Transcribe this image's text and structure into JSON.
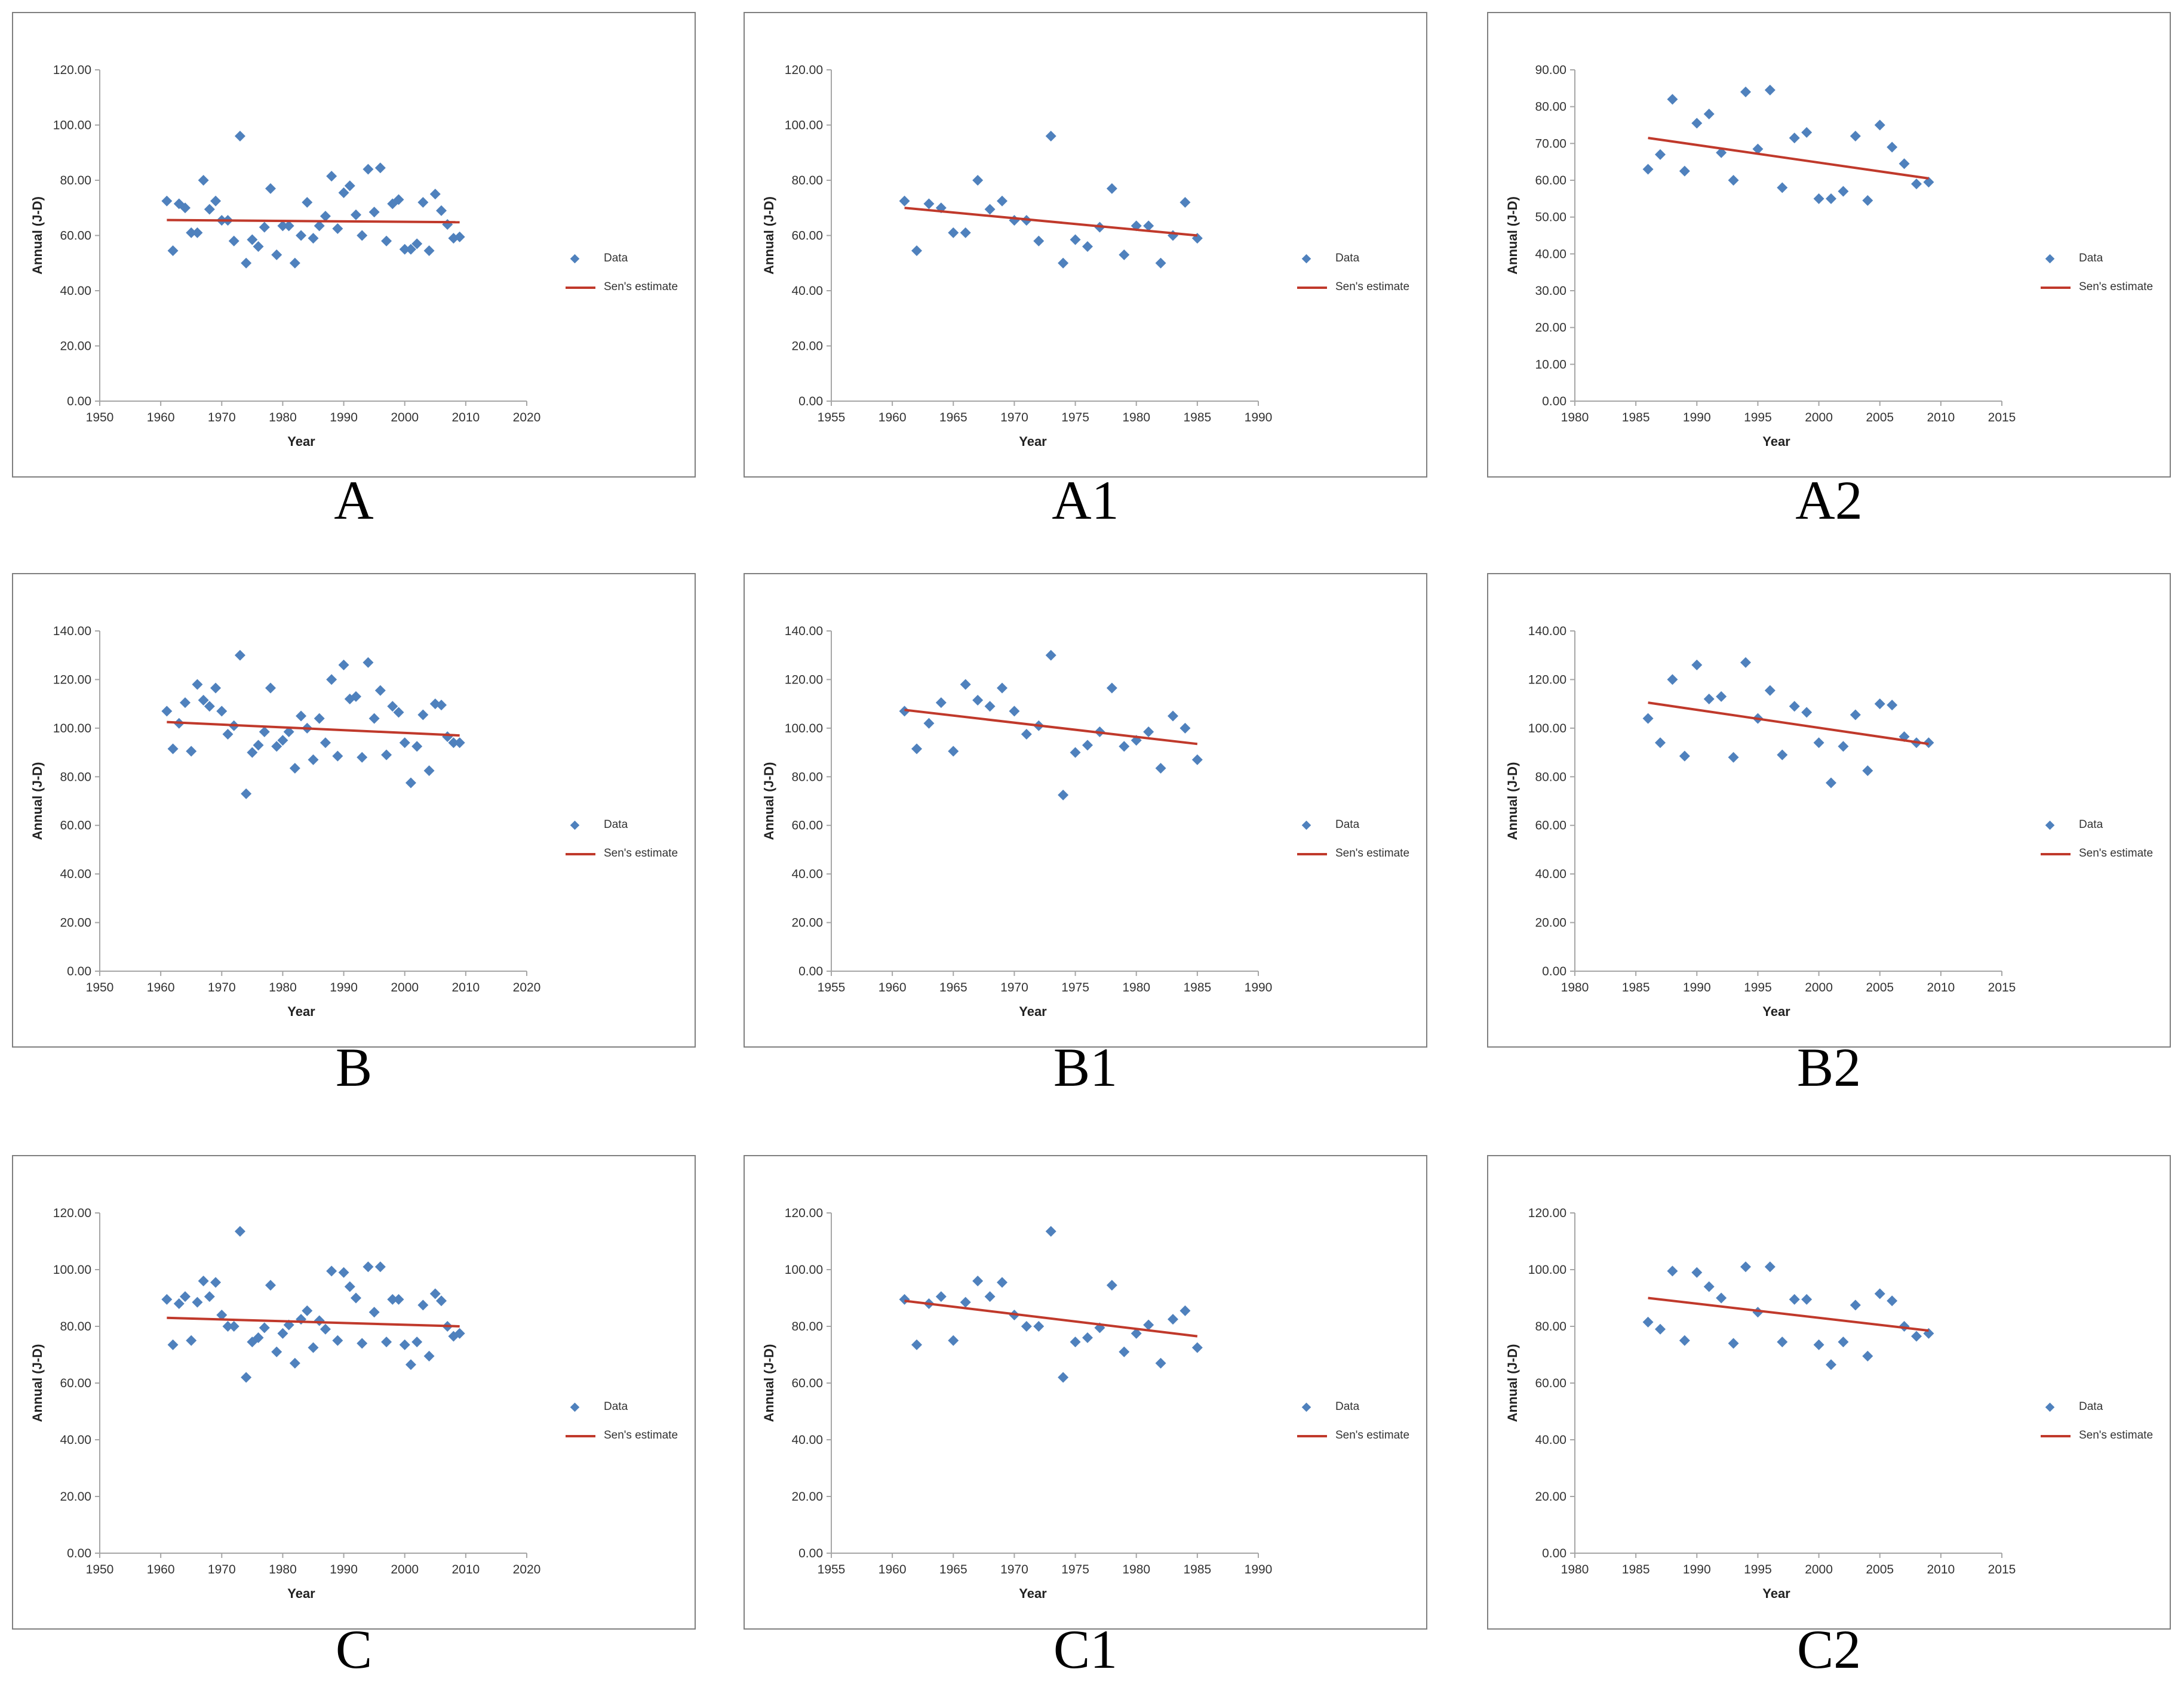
{
  "legend": {
    "data_label": "Data",
    "trend_label": "Sen's estimate"
  },
  "colors": {
    "marker": "#4f81bd",
    "trend": "#c0392b",
    "axis": "#a6a6a6"
  },
  "chart_data": [
    {
      "id": "A",
      "caption": "A",
      "type": "scatter",
      "xlabel": "Year",
      "ylabel": "Annual (J-D)",
      "xlim": [
        1950,
        2020
      ],
      "ylim": [
        0,
        120
      ],
      "xticks": [
        "1950",
        "1960",
        "1970",
        "1980",
        "1990",
        "2000",
        "2010",
        "2020"
      ],
      "yticks": [
        "0.00",
        "20.00",
        "40.00",
        "60.00",
        "80.00",
        "100.00",
        "120.00"
      ],
      "series": [
        {
          "name": "Data",
          "x": [
            1961,
            1962,
            1963,
            1964,
            1965,
            1966,
            1967,
            1968,
            1969,
            1970,
            1971,
            1972,
            1973,
            1974,
            1975,
            1976,
            1977,
            1978,
            1979,
            1980,
            1981,
            1982,
            1983,
            1984,
            1985,
            1986,
            1987,
            1988,
            1989,
            1990,
            1991,
            1992,
            1993,
            1994,
            1995,
            1996,
            1997,
            1998,
            1999,
            2000,
            2001,
            2002,
            2003,
            2004,
            2005,
            2006,
            2007,
            2008,
            2009
          ],
          "y": [
            72.5,
            54.5,
            71.5,
            70,
            61,
            61,
            80,
            69.5,
            72.5,
            65.5,
            65.5,
            58,
            96,
            50,
            58.5,
            56,
            63,
            77,
            53,
            63.5,
            63.5,
            50,
            60,
            72,
            59,
            63.5,
            67,
            81.5,
            62.5,
            75.5,
            78,
            67.5,
            60,
            84,
            68.5,
            84.5,
            58,
            71.5,
            73,
            55,
            55,
            57,
            72,
            54.5,
            75,
            69,
            64,
            59,
            59.5
          ]
        }
      ],
      "trend": {
        "name": "Sen's estimate",
        "x": [
          1961,
          2009
        ],
        "y": [
          65.6,
          64.8
        ]
      }
    },
    {
      "id": "A1",
      "caption": "A1",
      "type": "scatter",
      "xlabel": "Year",
      "ylabel": "Annual (J-D)",
      "xlim": [
        1955,
        1990
      ],
      "ylim": [
        0,
        120
      ],
      "xticks": [
        "1955",
        "1960",
        "1965",
        "1970",
        "1975",
        "1980",
        "1985",
        "1990"
      ],
      "yticks": [
        "0.00",
        "20.00",
        "40.00",
        "60.00",
        "80.00",
        "100.00",
        "120.00"
      ],
      "series": [
        {
          "name": "Data",
          "x": [
            1961,
            1962,
            1963,
            1964,
            1965,
            1966,
            1967,
            1968,
            1969,
            1970,
            1971,
            1972,
            1973,
            1974,
            1975,
            1976,
            1977,
            1978,
            1979,
            1980,
            1981,
            1982,
            1983,
            1984,
            1985
          ],
          "y": [
            72.5,
            54.5,
            71.5,
            70,
            61,
            61,
            80,
            69.5,
            72.5,
            65.5,
            65.5,
            58,
            96,
            50,
            58.5,
            56,
            63,
            77,
            53,
            63.5,
            63.5,
            50,
            60,
            72,
            59
          ]
        }
      ],
      "trend": {
        "name": "Sen's estimate",
        "x": [
          1961,
          1985
        ],
        "y": [
          70,
          60
        ]
      }
    },
    {
      "id": "A2",
      "caption": "A2",
      "type": "scatter",
      "xlabel": "Year",
      "ylabel": "Annual (J-D)",
      "xlim": [
        1980,
        2015
      ],
      "ylim": [
        0,
        90
      ],
      "xticks": [
        "1980",
        "1985",
        "1990",
        "1995",
        "2000",
        "2005",
        "2010",
        "2015"
      ],
      "yticks": [
        "0.00",
        "10.00",
        "20.00",
        "30.00",
        "40.00",
        "50.00",
        "60.00",
        "70.00",
        "80.00",
        "90.00"
      ],
      "series": [
        {
          "name": "Data",
          "x": [
            1986,
            1987,
            1988,
            1989,
            1990,
            1991,
            1992,
            1993,
            1994,
            1995,
            1996,
            1997,
            1998,
            1999,
            2000,
            2001,
            2002,
            2003,
            2004,
            2005,
            2006,
            2007,
            2008,
            2009
          ],
          "y": [
            63,
            67,
            82,
            62.5,
            75.5,
            78,
            67.5,
            60,
            84,
            68.5,
            84.5,
            58,
            71.5,
            73,
            55,
            55,
            57,
            72,
            54.5,
            75,
            69,
            64.5,
            59,
            59.5
          ]
        }
      ],
      "trend": {
        "name": "Sen's estimate",
        "x": [
          1986,
          2009
        ],
        "y": [
          71.5,
          60.5
        ]
      }
    },
    {
      "id": "B",
      "caption": "B",
      "type": "scatter",
      "xlabel": "Year",
      "ylabel": "Annual (J-D)",
      "xlim": [
        1950,
        2020
      ],
      "ylim": [
        0,
        140
      ],
      "xticks": [
        "1950",
        "1960",
        "1970",
        "1980",
        "1990",
        "2000",
        "2010",
        "2020"
      ],
      "yticks": [
        "0.00",
        "20.00",
        "40.00",
        "60.00",
        "80.00",
        "100.00",
        "120.00",
        "140.00"
      ],
      "series": [
        {
          "name": "Data",
          "x": [
            1961,
            1962,
            1963,
            1964,
            1965,
            1966,
            1967,
            1968,
            1969,
            1970,
            1971,
            1972,
            1973,
            1974,
            1975,
            1976,
            1977,
            1978,
            1979,
            1980,
            1981,
            1982,
            1983,
            1984,
            1985,
            1986,
            1987,
            1988,
            1989,
            1990,
            1991,
            1992,
            1993,
            1994,
            1995,
            1996,
            1997,
            1998,
            1999,
            2000,
            2001,
            2002,
            2003,
            2004,
            2005,
            2006,
            2007,
            2008,
            2009
          ],
          "y": [
            107,
            91.5,
            102,
            110.5,
            90.5,
            118,
            111.5,
            109,
            116.5,
            107,
            97.5,
            101,
            130,
            73,
            90,
            93,
            98.5,
            116.5,
            92.5,
            95,
            98.5,
            83.5,
            105,
            100,
            87,
            104,
            94,
            120,
            88.5,
            126,
            112,
            113,
            88,
            127,
            104,
            115.5,
            89,
            109,
            106.5,
            94,
            77.5,
            92.5,
            105.5,
            82.5,
            110,
            109.5,
            96.5,
            94,
            94
          ]
        }
      ],
      "trend": {
        "name": "Sen's estimate",
        "x": [
          1961,
          2009
        ],
        "y": [
          102.5,
          97
        ]
      }
    },
    {
      "id": "B1",
      "caption": "B1",
      "type": "scatter",
      "xlabel": "Year",
      "ylabel": "Annual (J-D)",
      "xlim": [
        1955,
        1990
      ],
      "ylim": [
        0,
        140
      ],
      "xticks": [
        "1955",
        "1960",
        "1965",
        "1970",
        "1975",
        "1980",
        "1985",
        "1990"
      ],
      "yticks": [
        "0.00",
        "20.00",
        "40.00",
        "60.00",
        "80.00",
        "100.00",
        "120.00",
        "140.00"
      ],
      "series": [
        {
          "name": "Data",
          "x": [
            1961,
            1962,
            1963,
            1964,
            1965,
            1966,
            1967,
            1968,
            1969,
            1970,
            1971,
            1972,
            1973,
            1974,
            1975,
            1976,
            1977,
            1978,
            1979,
            1980,
            1981,
            1982,
            1983,
            1984,
            1985
          ],
          "y": [
            107,
            91.5,
            102,
            110.5,
            90.5,
            118,
            111.5,
            109,
            116.5,
            107,
            97.5,
            101,
            130,
            72.5,
            90,
            93,
            98.5,
            116.5,
            92.5,
            95,
            98.5,
            83.5,
            105,
            100,
            87
          ]
        }
      ],
      "trend": {
        "name": "Sen's estimate",
        "x": [
          1961,
          1985
        ],
        "y": [
          107.5,
          93.5
        ]
      }
    },
    {
      "id": "B2",
      "caption": "B2",
      "type": "scatter",
      "xlabel": "Year",
      "ylabel": "Annual (J-D)",
      "xlim": [
        1980,
        2015
      ],
      "ylim": [
        0,
        140
      ],
      "xticks": [
        "1980",
        "1985",
        "1990",
        "1995",
        "2000",
        "2005",
        "2010",
        "2015"
      ],
      "yticks": [
        "0.00",
        "20.00",
        "40.00",
        "60.00",
        "80.00",
        "100.00",
        "120.00",
        "140.00"
      ],
      "series": [
        {
          "name": "Data",
          "x": [
            1986,
            1987,
            1988,
            1989,
            1990,
            1991,
            1992,
            1993,
            1994,
            1995,
            1996,
            1997,
            1998,
            1999,
            2000,
            2001,
            2002,
            2003,
            2004,
            2005,
            2006,
            2007,
            2008,
            2009
          ],
          "y": [
            104,
            94,
            120,
            88.5,
            126,
            112,
            113,
            88,
            127,
            104,
            115.5,
            89,
            109,
            106.5,
            94,
            77.5,
            92.5,
            105.5,
            82.5,
            110,
            109.5,
            96.5,
            94,
            94
          ]
        }
      ],
      "trend": {
        "name": "Sen's estimate",
        "x": [
          1986,
          2009
        ],
        "y": [
          110.5,
          93.5
        ]
      }
    },
    {
      "id": "C",
      "caption": "C",
      "type": "scatter",
      "xlabel": "Year",
      "ylabel": "Annual (J-D)",
      "xlim": [
        1950,
        2020
      ],
      "ylim": [
        0,
        120
      ],
      "xticks": [
        "1950",
        "1960",
        "1970",
        "1980",
        "1990",
        "2000",
        "2010",
        "2020"
      ],
      "yticks": [
        "0.00",
        "20.00",
        "40.00",
        "60.00",
        "80.00",
        "100.00",
        "120.00"
      ],
      "series": [
        {
          "name": "Data",
          "x": [
            1961,
            1962,
            1963,
            1964,
            1965,
            1966,
            1967,
            1968,
            1969,
            1970,
            1971,
            1972,
            1973,
            1974,
            1975,
            1976,
            1977,
            1978,
            1979,
            1980,
            1981,
            1982,
            1983,
            1984,
            1985,
            1986,
            1987,
            1988,
            1989,
            1990,
            1991,
            1992,
            1993,
            1994,
            1995,
            1996,
            1997,
            1998,
            1999,
            2000,
            2001,
            2002,
            2003,
            2004,
            2005,
            2006,
            2007,
            2008,
            2009
          ],
          "y": [
            89.5,
            73.5,
            88,
            90.5,
            75,
            88.5,
            96,
            90.5,
            95.5,
            84,
            80,
            80,
            113.5,
            62,
            74.5,
            76,
            79.5,
            94.5,
            71,
            77.5,
            80.5,
            67,
            82.5,
            85.5,
            72.5,
            82,
            79,
            99.5,
            75,
            99,
            94,
            90,
            74,
            101,
            85,
            101,
            74.5,
            89.5,
            89.5,
            73.5,
            66.5,
            74.5,
            87.5,
            69.5,
            91.5,
            89,
            80,
            76.5,
            77.5
          ]
        }
      ],
      "trend": {
        "name": "Sen's estimate",
        "x": [
          1961,
          2009
        ],
        "y": [
          83,
          80
        ]
      }
    },
    {
      "id": "C1",
      "caption": "C1",
      "type": "scatter",
      "xlabel": "Year",
      "ylabel": "Annual (J-D)",
      "xlim": [
        1955,
        1990
      ],
      "ylim": [
        0,
        120
      ],
      "xticks": [
        "1955",
        "1960",
        "1965",
        "1970",
        "1975",
        "1980",
        "1985",
        "1990"
      ],
      "yticks": [
        "0.00",
        "20.00",
        "40.00",
        "60.00",
        "80.00",
        "100.00",
        "120.00"
      ],
      "series": [
        {
          "name": "Data",
          "x": [
            1961,
            1962,
            1963,
            1964,
            1965,
            1966,
            1967,
            1968,
            1969,
            1970,
            1971,
            1972,
            1973,
            1974,
            1975,
            1976,
            1977,
            1978,
            1979,
            1980,
            1981,
            1982,
            1983,
            1984,
            1985
          ],
          "y": [
            89.5,
            73.5,
            88,
            90.5,
            75,
            88.5,
            96,
            90.5,
            95.5,
            84,
            80,
            80,
            113.5,
            62,
            74.5,
            76,
            79.5,
            94.5,
            71,
            77.5,
            80.5,
            67,
            82.5,
            85.5,
            72.5
          ]
        }
      ],
      "trend": {
        "name": "Sen's estimate",
        "x": [
          1961,
          1985
        ],
        "y": [
          89,
          76.5
        ]
      }
    },
    {
      "id": "C2",
      "caption": "C2",
      "type": "scatter",
      "xlabel": "Year",
      "ylabel": "Annual (J-D)",
      "xlim": [
        1980,
        2015
      ],
      "ylim": [
        0,
        120
      ],
      "xticks": [
        "1980",
        "1985",
        "1990",
        "1995",
        "2000",
        "2005",
        "2010",
        "2015"
      ],
      "yticks": [
        "0.00",
        "20.00",
        "40.00",
        "60.00",
        "80.00",
        "100.00",
        "120.00"
      ],
      "series": [
        {
          "name": "Data",
          "x": [
            1986,
            1987,
            1988,
            1989,
            1990,
            1991,
            1992,
            1993,
            1994,
            1995,
            1996,
            1997,
            1998,
            1999,
            2000,
            2001,
            2002,
            2003,
            2004,
            2005,
            2006,
            2007,
            2008,
            2009
          ],
          "y": [
            81.5,
            79,
            99.5,
            75,
            99,
            94,
            90,
            74,
            101,
            85,
            101,
            74.5,
            89.5,
            89.5,
            73.5,
            66.5,
            74.5,
            87.5,
            69.5,
            91.5,
            89,
            80,
            76.5,
            77.5
          ]
        }
      ],
      "trend": {
        "name": "Sen's estimate",
        "x": [
          1986,
          2009
        ],
        "y": [
          90,
          78.5
        ]
      }
    }
  ]
}
